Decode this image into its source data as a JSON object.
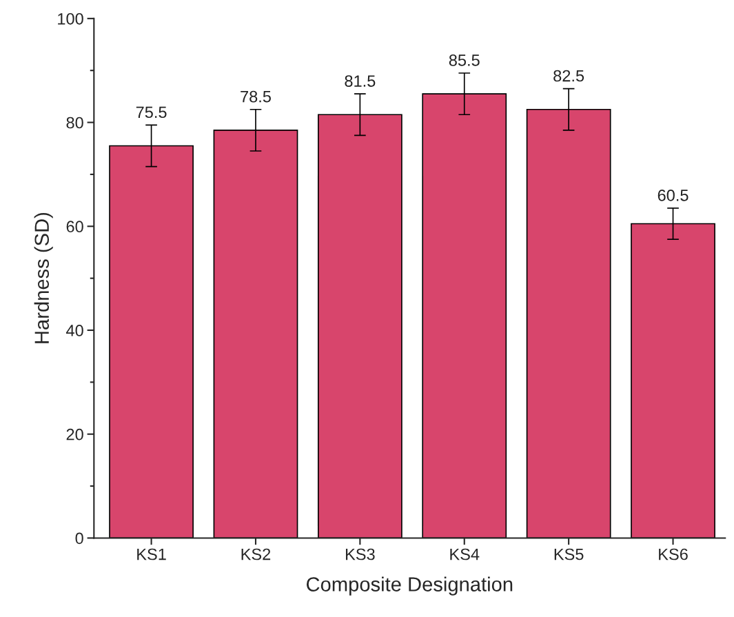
{
  "chart_data": {
    "type": "bar",
    "xlabel": "Composite Designation",
    "ylabel": "Hardness (SD)",
    "categories": [
      "KS1",
      "KS2",
      "KS3",
      "KS4",
      "KS5",
      "KS6"
    ],
    "values": [
      75.5,
      78.5,
      81.5,
      85.5,
      82.5,
      60.5
    ],
    "errors": [
      4,
      4,
      4,
      4,
      4,
      3
    ],
    "color": "#d8456c",
    "ylim": [
      0,
      100
    ],
    "yticks": [
      0,
      20,
      40,
      60,
      80,
      100
    ],
    "data_labels": true,
    "grid": false,
    "legend": false
  }
}
